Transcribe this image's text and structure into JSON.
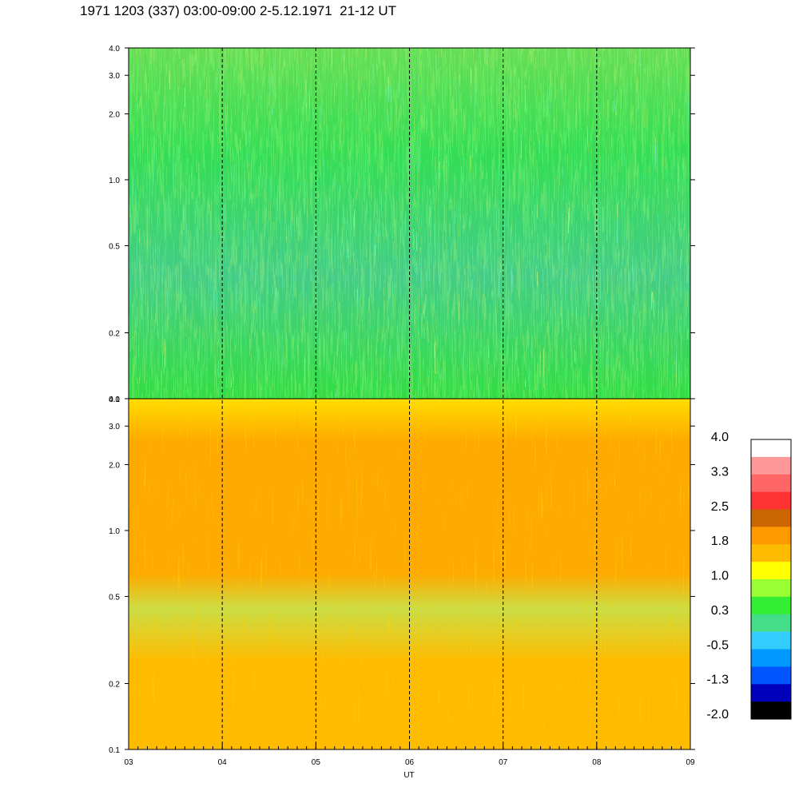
{
  "title": "1971 1203 (337) 03:00-09:00 2-5.12.1971  21-12 UT",
  "chart_data": {
    "type": "heatmap",
    "xlabel": "UT",
    "x_ticks": [
      "03",
      "04",
      "05",
      "06",
      "07",
      "08",
      "09"
    ],
    "xlim": [
      3,
      9
    ],
    "panels": [
      {
        "name": "upper",
        "y_scale": "log",
        "ylim": [
          0.1,
          4.0
        ],
        "y_ticks": [
          0.1,
          0.2,
          0.5,
          1.0,
          2.0,
          3.0,
          4.0
        ],
        "y_tick_labels": [
          "0.1",
          "0.2",
          "0.5",
          "1.0",
          "2.0",
          "3.0",
          "4.0"
        ],
        "dominant_level": 0.3
      },
      {
        "name": "lower",
        "y_scale": "log",
        "ylim": [
          0.1,
          4.0
        ],
        "y_ticks": [
          0.1,
          0.2,
          0.5,
          1.0,
          2.0,
          3.0,
          4.0
        ],
        "y_tick_labels": [
          "0.1",
          "0.2",
          "0.5",
          "1.0",
          "2.0",
          "3.0",
          "4.0"
        ],
        "dominant_level": 1.8
      }
    ],
    "vertical_dashed_lines_at": [
      4,
      5,
      6,
      7,
      8
    ],
    "colorbar": {
      "range": [
        -2.0,
        4.0
      ],
      "labels": [
        "4.0",
        "3.3",
        "2.5",
        "1.8",
        "1.0",
        "0.3",
        "-0.5",
        "-1.3",
        "-2.0"
      ],
      "colors_top_to_bottom": [
        "#ffffff",
        "#ff9999",
        "#ff6666",
        "#ff3333",
        "#cc6600",
        "#ff9900",
        "#ffbb00",
        "#ffff00",
        "#99ff33",
        "#33ee33",
        "#44dd88",
        "#33ccff",
        "#0099ff",
        "#0055ff",
        "#0000bb",
        "#000000"
      ]
    }
  }
}
